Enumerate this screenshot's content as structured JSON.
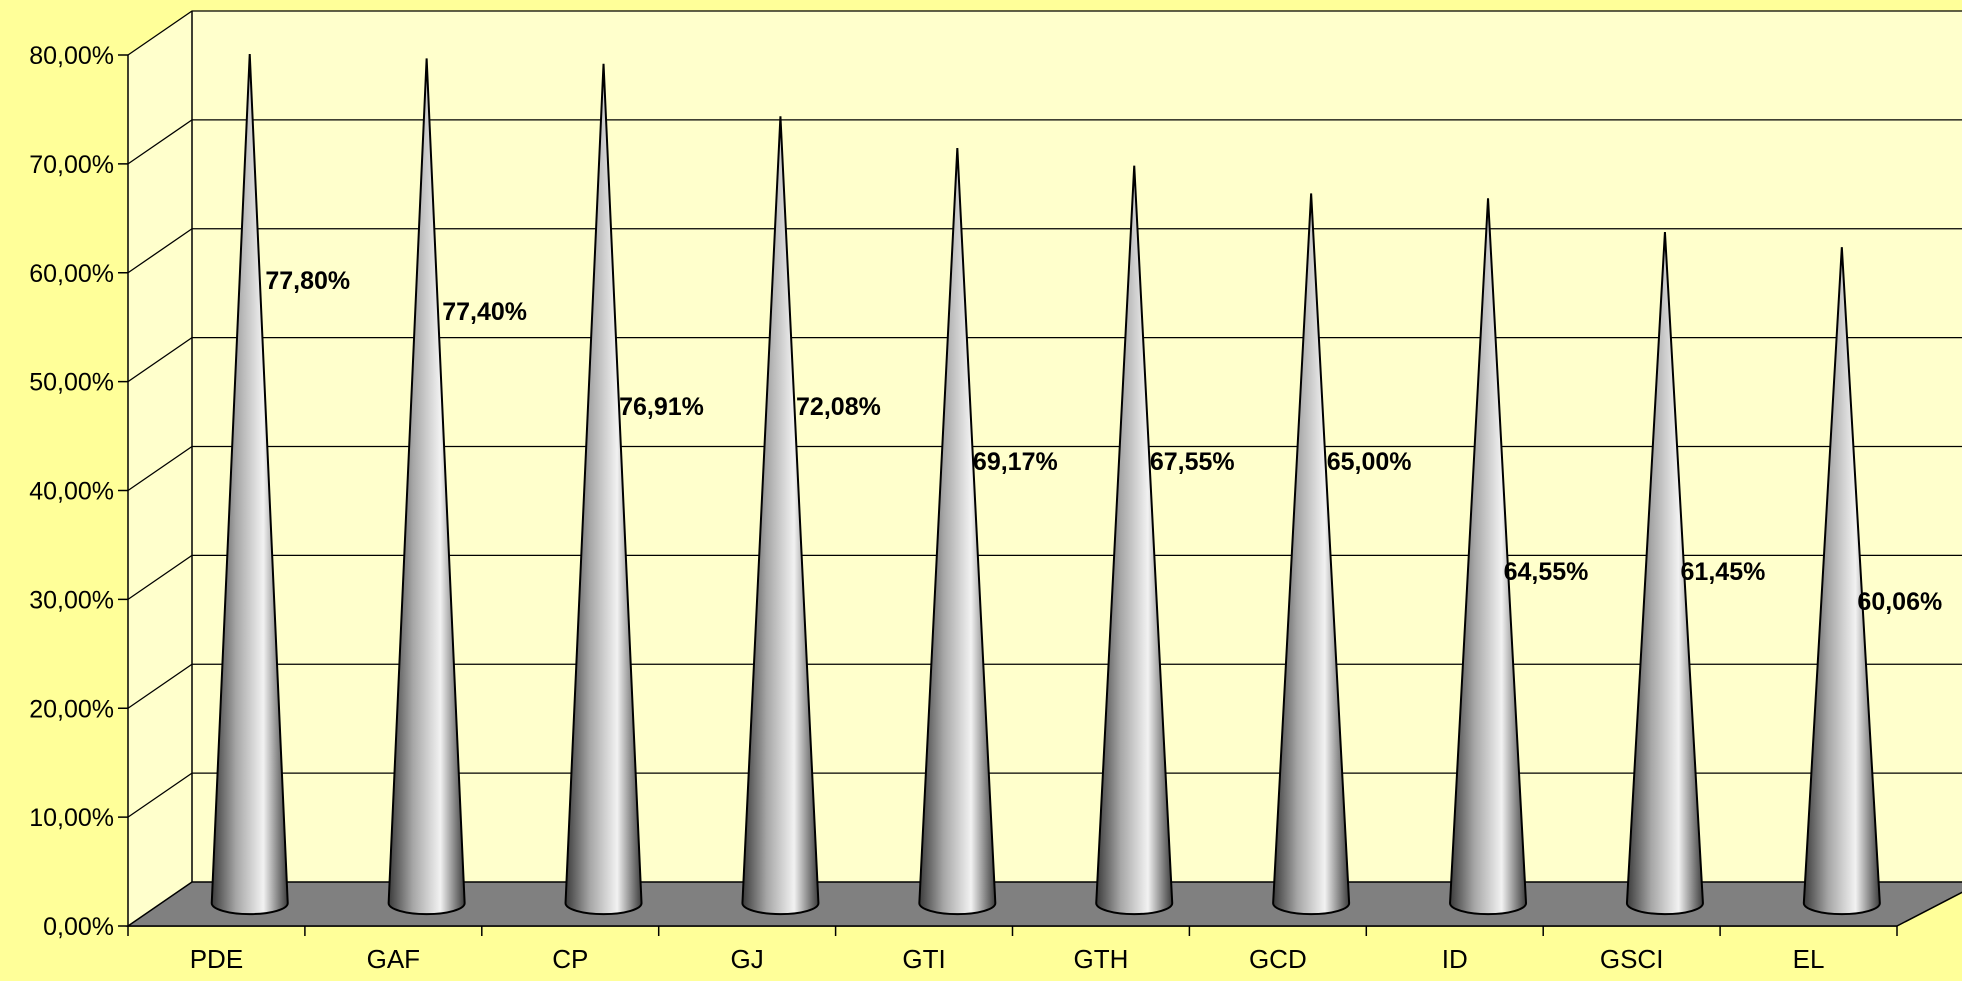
{
  "chart_data": {
    "type": "bar",
    "style": "3d-cone",
    "categories": [
      "PDE",
      "GAF",
      "CP",
      "GJ",
      "GTI",
      "GTH",
      "GCD",
      "ID",
      "GSCI",
      "EL"
    ],
    "values": [
      77.8,
      77.4,
      76.91,
      72.08,
      69.17,
      67.55,
      65.0,
      64.55,
      61.45,
      60.06
    ],
    "data_labels": [
      "77,80%",
      "77,40%",
      "76,91%",
      "72,08%",
      "69,17%",
      "67,55%",
      "65,00%",
      "64,55%",
      "61,45%",
      "60,06%"
    ],
    "y_ticks": [
      "0,00%",
      "10,00%",
      "20,00%",
      "30,00%",
      "40,00%",
      "50,00%",
      "60,00%",
      "70,00%",
      "80,00%"
    ],
    "ylim": [
      0,
      80
    ],
    "grid": true,
    "legend": "none",
    "title": "",
    "xlabel": "",
    "ylabel": ""
  },
  "colors": {
    "background": "#ffff99",
    "plot_wall": "#ffffcc",
    "floor": "#808080",
    "cone_light": "#f2f2f2",
    "cone_mid": "#a6a6a6",
    "cone_dark": "#3c3c3c"
  }
}
